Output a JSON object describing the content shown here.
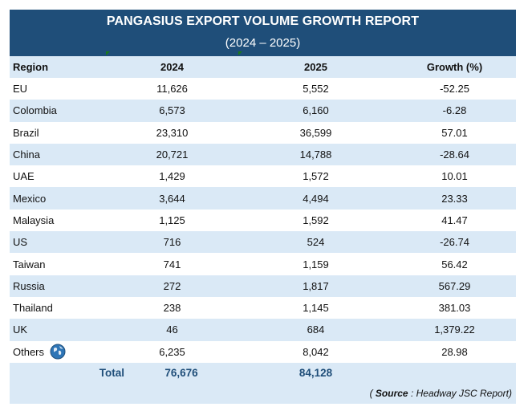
{
  "report": {
    "title": "PANGASIUS EXPORT VOLUME GROWTH REPORT",
    "subtitle": "(2024 – 2025)"
  },
  "table": {
    "headers": [
      "Region",
      "2024",
      "2025",
      "Growth (%)"
    ],
    "rows": [
      {
        "region": "EU",
        "y2024": "11,626",
        "y2025": "5,552",
        "growth": "-52.25"
      },
      {
        "region": "Colombia",
        "y2024": "6,573",
        "y2025": "6,160",
        "growth": "-6.28"
      },
      {
        "region": "Brazil",
        "y2024": "23,310",
        "y2025": "36,599",
        "growth": "57.01"
      },
      {
        "region": "China",
        "y2024": "20,721",
        "y2025": "14,788",
        "growth": "-28.64"
      },
      {
        "region": "UAE",
        "y2024": "1,429",
        "y2025": "1,572",
        "growth": "10.01"
      },
      {
        "region": "Mexico",
        "y2024": "3,644",
        "y2025": "4,494",
        "growth": "23.33"
      },
      {
        "region": "Malaysia",
        "y2024": "1,125",
        "y2025": "1,592",
        "growth": "41.47"
      },
      {
        "region": "US",
        "y2024": "716",
        "y2025": "524",
        "growth": "-26.74"
      },
      {
        "region": "Taiwan",
        "y2024": "741",
        "y2025": "1,159",
        "growth": "56.42"
      },
      {
        "region": "Russia",
        "y2024": "272",
        "y2025": "1,817",
        "growth": "567.29"
      },
      {
        "region": "Thailand",
        "y2024": "238",
        "y2025": "1,145",
        "growth": "381.03"
      },
      {
        "region": "UK",
        "y2024": "46",
        "y2025": "684",
        "growth": "1,379.22"
      },
      {
        "region": "Others",
        "y2024": "6,235",
        "y2025": "8,042",
        "growth": "28.98",
        "icon": "globe-icon"
      }
    ],
    "total": {
      "label": "Total",
      "y2024": "76,676",
      "y2025": "84,128"
    }
  },
  "source": {
    "prefix": "( ",
    "label": "Source",
    "text": " : Headway JSC Report)"
  },
  "colors": {
    "header_bg": "#1f4e79",
    "stripe_bg": "#dae9f6",
    "total_text": "#1f4e79",
    "marker": "#1a7a1a"
  }
}
